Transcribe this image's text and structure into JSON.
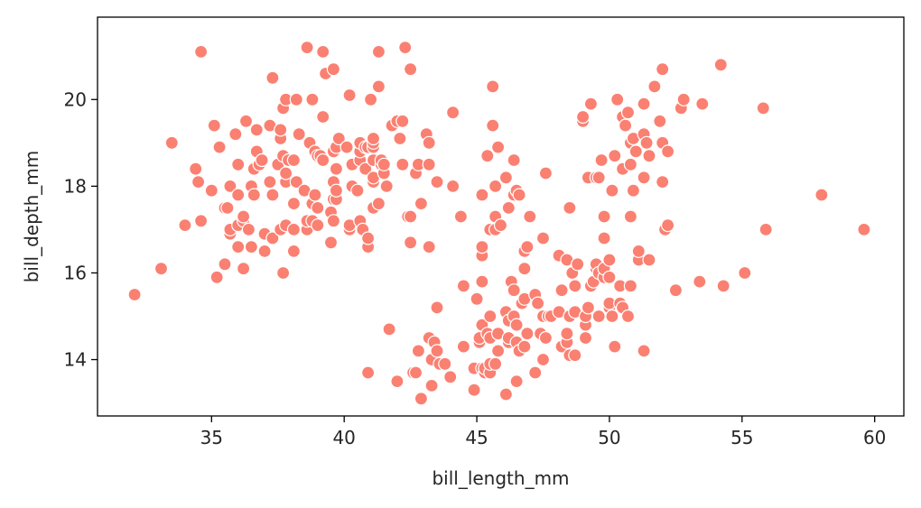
{
  "chart_data": {
    "type": "scatter",
    "xlabel": "bill_length_mm",
    "ylabel": "bill_depth_mm",
    "xlim": [
      30.7,
      61.1
    ],
    "ylim": [
      12.7,
      21.9
    ],
    "xticks": [
      35,
      40,
      45,
      50,
      55,
      60
    ],
    "yticks": [
      14,
      16,
      18,
      20
    ],
    "grid": false,
    "legend": "none",
    "marker_color": "#fa8072",
    "marker_edge": "#ffffff",
    "points": [
      [
        32.1,
        15.5
      ],
      [
        33.1,
        16.1
      ],
      [
        33.5,
        19.0
      ],
      [
        34.0,
        17.1
      ],
      [
        34.4,
        18.4
      ],
      [
        34.5,
        18.1
      ],
      [
        34.6,
        17.2
      ],
      [
        34.6,
        21.1
      ],
      [
        35.0,
        17.9
      ],
      [
        35.1,
        19.4
      ],
      [
        35.2,
        15.9
      ],
      [
        35.3,
        18.9
      ],
      [
        35.5,
        16.2
      ],
      [
        35.5,
        17.5
      ],
      [
        35.6,
        17.5
      ],
      [
        35.7,
        16.9
      ],
      [
        35.7,
        17.0
      ],
      [
        35.7,
        18.0
      ],
      [
        35.9,
        19.2
      ],
      [
        36.0,
        16.6
      ],
      [
        36.0,
        17.1
      ],
      [
        36.0,
        17.8
      ],
      [
        36.0,
        18.5
      ],
      [
        36.2,
        16.1
      ],
      [
        36.2,
        17.2
      ],
      [
        36.2,
        17.3
      ],
      [
        36.3,
        19.5
      ],
      [
        36.4,
        17.0
      ],
      [
        36.5,
        16.6
      ],
      [
        36.5,
        18.0
      ],
      [
        36.6,
        17.8
      ],
      [
        36.6,
        18.4
      ],
      [
        36.7,
        18.8
      ],
      [
        36.7,
        19.3
      ],
      [
        36.8,
        18.5
      ],
      [
        36.9,
        18.6
      ],
      [
        37.0,
        16.5
      ],
      [
        37.0,
        16.9
      ],
      [
        37.2,
        18.1
      ],
      [
        37.2,
        19.4
      ],
      [
        37.3,
        16.8
      ],
      [
        37.3,
        17.8
      ],
      [
        37.3,
        20.5
      ],
      [
        37.5,
        18.5
      ],
      [
        37.6,
        17.0
      ],
      [
        37.6,
        19.1
      ],
      [
        37.6,
        19.3
      ],
      [
        37.7,
        16.0
      ],
      [
        37.7,
        18.7
      ],
      [
        37.7,
        19.8
      ],
      [
        37.8,
        17.1
      ],
      [
        37.8,
        18.1
      ],
      [
        37.8,
        18.3
      ],
      [
        37.8,
        20.0
      ],
      [
        37.9,
        18.6
      ],
      [
        38.1,
        16.5
      ],
      [
        38.1,
        17.0
      ],
      [
        38.1,
        17.6
      ],
      [
        38.1,
        18.6
      ],
      [
        38.2,
        18.1
      ],
      [
        38.2,
        20.0
      ],
      [
        38.3,
        19.2
      ],
      [
        38.5,
        17.9
      ],
      [
        38.6,
        17.0
      ],
      [
        38.6,
        17.2
      ],
      [
        38.6,
        21.2
      ],
      [
        38.7,
        19.0
      ],
      [
        38.8,
        17.2
      ],
      [
        38.8,
        17.6
      ],
      [
        38.8,
        20.0
      ],
      [
        38.9,
        17.8
      ],
      [
        38.9,
        18.8
      ],
      [
        39.0,
        17.1
      ],
      [
        39.0,
        17.5
      ],
      [
        39.0,
        18.7
      ],
      [
        39.1,
        18.7
      ],
      [
        39.2,
        18.6
      ],
      [
        39.2,
        19.6
      ],
      [
        39.2,
        21.1
      ],
      [
        39.3,
        20.6
      ],
      [
        39.5,
        16.7
      ],
      [
        39.5,
        17.4
      ],
      [
        39.6,
        17.2
      ],
      [
        39.6,
        17.7
      ],
      [
        39.6,
        18.1
      ],
      [
        39.6,
        18.8
      ],
      [
        39.6,
        20.7
      ],
      [
        39.7,
        17.7
      ],
      [
        39.7,
        17.9
      ],
      [
        39.7,
        18.4
      ],
      [
        39.7,
        18.9
      ],
      [
        39.8,
        19.1
      ],
      [
        40.1,
        18.9
      ],
      [
        40.2,
        17.0
      ],
      [
        40.2,
        17.1
      ],
      [
        40.2,
        20.1
      ],
      [
        40.3,
        18.0
      ],
      [
        40.3,
        18.5
      ],
      [
        40.5,
        17.9
      ],
      [
        40.6,
        17.2
      ],
      [
        40.6,
        18.6
      ],
      [
        40.6,
        18.8
      ],
      [
        40.6,
        19.0
      ],
      [
        40.7,
        17.0
      ],
      [
        40.8,
        18.4
      ],
      [
        40.8,
        18.9
      ],
      [
        40.9,
        13.7
      ],
      [
        40.9,
        16.6
      ],
      [
        40.9,
        16.8
      ],
      [
        40.9,
        18.9
      ],
      [
        41.0,
        20.0
      ],
      [
        41.1,
        17.5
      ],
      [
        41.1,
        18.1
      ],
      [
        41.1,
        18.2
      ],
      [
        41.1,
        18.6
      ],
      [
        41.1,
        18.9
      ],
      [
        41.1,
        19.0
      ],
      [
        41.1,
        19.1
      ],
      [
        41.3,
        17.6
      ],
      [
        41.3,
        20.3
      ],
      [
        41.3,
        21.1
      ],
      [
        41.4,
        18.5
      ],
      [
        41.4,
        18.6
      ],
      [
        41.5,
        18.3
      ],
      [
        41.5,
        18.5
      ],
      [
        41.6,
        18.0
      ],
      [
        41.7,
        14.7
      ],
      [
        41.8,
        19.4
      ],
      [
        42.0,
        13.5
      ],
      [
        42.0,
        19.5
      ],
      [
        42.1,
        19.1
      ],
      [
        42.2,
        18.5
      ],
      [
        42.2,
        19.5
      ],
      [
        42.3,
        21.2
      ],
      [
        42.4,
        17.3
      ],
      [
        42.5,
        16.7
      ],
      [
        42.5,
        17.3
      ],
      [
        42.5,
        20.7
      ],
      [
        42.6,
        13.7
      ],
      [
        42.7,
        13.7
      ],
      [
        42.7,
        18.3
      ],
      [
        42.8,
        14.2
      ],
      [
        42.8,
        18.5
      ],
      [
        42.9,
        13.1
      ],
      [
        42.9,
        17.6
      ],
      [
        43.1,
        19.2
      ],
      [
        43.2,
        14.5
      ],
      [
        43.2,
        16.6
      ],
      [
        43.2,
        18.5
      ],
      [
        43.2,
        19.0
      ],
      [
        43.3,
        13.4
      ],
      [
        43.3,
        14.0
      ],
      [
        43.4,
        14.4
      ],
      [
        43.5,
        14.2
      ],
      [
        43.5,
        15.2
      ],
      [
        43.5,
        18.1
      ],
      [
        43.6,
        13.9
      ],
      [
        43.8,
        13.9
      ],
      [
        44.0,
        13.6
      ],
      [
        44.1,
        18.0
      ],
      [
        44.1,
        19.7
      ],
      [
        44.4,
        17.3
      ],
      [
        44.5,
        14.3
      ],
      [
        44.5,
        15.7
      ],
      [
        44.9,
        13.3
      ],
      [
        44.9,
        13.8
      ],
      [
        45.0,
        15.4
      ],
      [
        45.1,
        14.4
      ],
      [
        45.1,
        14.5
      ],
      [
        45.2,
        13.8
      ],
      [
        45.2,
        14.8
      ],
      [
        45.2,
        15.8
      ],
      [
        45.2,
        16.4
      ],
      [
        45.2,
        16.6
      ],
      [
        45.2,
        17.8
      ],
      [
        45.3,
        13.7
      ],
      [
        45.3,
        13.8
      ],
      [
        45.4,
        14.6
      ],
      [
        45.4,
        18.7
      ],
      [
        45.5,
        13.7
      ],
      [
        45.5,
        13.9
      ],
      [
        45.5,
        14.5
      ],
      [
        45.5,
        15.0
      ],
      [
        45.5,
        17.0
      ],
      [
        45.6,
        19.4
      ],
      [
        45.6,
        20.3
      ],
      [
        45.7,
        13.9
      ],
      [
        45.7,
        17.0
      ],
      [
        45.7,
        17.3
      ],
      [
        45.7,
        18.0
      ],
      [
        45.8,
        14.2
      ],
      [
        45.8,
        14.6
      ],
      [
        45.8,
        18.9
      ],
      [
        45.9,
        17.1
      ],
      [
        46.1,
        13.2
      ],
      [
        46.1,
        15.1
      ],
      [
        46.1,
        18.2
      ],
      [
        46.2,
        14.4
      ],
      [
        46.2,
        14.5
      ],
      [
        46.2,
        14.9
      ],
      [
        46.2,
        17.5
      ],
      [
        46.3,
        15.8
      ],
      [
        46.4,
        15.0
      ],
      [
        46.4,
        15.6
      ],
      [
        46.4,
        17.8
      ],
      [
        46.4,
        18.6
      ],
      [
        46.5,
        13.5
      ],
      [
        46.5,
        14.4
      ],
      [
        46.5,
        14.8
      ],
      [
        46.5,
        17.9
      ],
      [
        46.6,
        14.2
      ],
      [
        46.6,
        17.8
      ],
      [
        46.7,
        15.3
      ],
      [
        46.8,
        14.3
      ],
      [
        46.8,
        15.4
      ],
      [
        46.8,
        16.1
      ],
      [
        46.8,
        16.5
      ],
      [
        46.9,
        14.6
      ],
      [
        46.9,
        16.6
      ],
      [
        47.0,
        17.3
      ],
      [
        47.2,
        13.7
      ],
      [
        47.2,
        15.5
      ],
      [
        47.3,
        15.3
      ],
      [
        47.4,
        14.6
      ],
      [
        47.5,
        14.0
      ],
      [
        47.5,
        15.0
      ],
      [
        47.5,
        16.8
      ],
      [
        47.6,
        14.5
      ],
      [
        47.6,
        18.3
      ],
      [
        47.7,
        15.0
      ],
      [
        47.8,
        15.0
      ],
      [
        48.1,
        15.1
      ],
      [
        48.1,
        16.4
      ],
      [
        48.2,
        14.3
      ],
      [
        48.2,
        15.6
      ],
      [
        48.4,
        14.4
      ],
      [
        48.4,
        14.6
      ],
      [
        48.4,
        16.3
      ],
      [
        48.5,
        14.1
      ],
      [
        48.5,
        15.0
      ],
      [
        48.5,
        17.5
      ],
      [
        48.6,
        16.0
      ],
      [
        48.7,
        14.1
      ],
      [
        48.7,
        15.1
      ],
      [
        48.7,
        15.7
      ],
      [
        48.8,
        16.2
      ],
      [
        49.0,
        19.5
      ],
      [
        49.0,
        19.6
      ],
      [
        49.1,
        14.5
      ],
      [
        49.1,
        14.8
      ],
      [
        49.1,
        15.0
      ],
      [
        49.2,
        15.2
      ],
      [
        49.2,
        18.2
      ],
      [
        49.3,
        15.7
      ],
      [
        49.3,
        19.9
      ],
      [
        49.4,
        15.8
      ],
      [
        49.5,
        16.1
      ],
      [
        49.5,
        16.2
      ],
      [
        49.5,
        18.2
      ],
      [
        49.6,
        15.0
      ],
      [
        49.6,
        16.0
      ],
      [
        49.6,
        18.2
      ],
      [
        49.7,
        18.6
      ],
      [
        49.8,
        15.9
      ],
      [
        49.8,
        16.1
      ],
      [
        49.8,
        16.8
      ],
      [
        49.8,
        17.3
      ],
      [
        50.0,
        15.2
      ],
      [
        50.0,
        15.3
      ],
      [
        50.0,
        15.9
      ],
      [
        50.0,
        16.3
      ],
      [
        50.1,
        15.0
      ],
      [
        50.1,
        17.9
      ],
      [
        50.2,
        14.3
      ],
      [
        50.2,
        18.7
      ],
      [
        50.3,
        20.0
      ],
      [
        50.4,
        15.3
      ],
      [
        50.4,
        15.7
      ],
      [
        50.5,
        15.2
      ],
      [
        50.5,
        18.4
      ],
      [
        50.5,
        19.6
      ],
      [
        50.6,
        19.4
      ],
      [
        50.7,
        15.0
      ],
      [
        50.7,
        19.7
      ],
      [
        50.8,
        15.7
      ],
      [
        50.8,
        17.3
      ],
      [
        50.8,
        18.5
      ],
      [
        50.8,
        19.0
      ],
      [
        50.9,
        17.9
      ],
      [
        50.9,
        19.1
      ],
      [
        51.0,
        18.8
      ],
      [
        51.1,
        16.3
      ],
      [
        51.1,
        16.5
      ],
      [
        51.3,
        14.2
      ],
      [
        51.3,
        18.2
      ],
      [
        51.3,
        19.2
      ],
      [
        51.3,
        19.9
      ],
      [
        51.4,
        19.0
      ],
      [
        51.5,
        16.3
      ],
      [
        51.5,
        18.7
      ],
      [
        51.7,
        20.3
      ],
      [
        51.9,
        19.5
      ],
      [
        52.0,
        18.1
      ],
      [
        52.0,
        19.0
      ],
      [
        52.0,
        20.7
      ],
      [
        52.1,
        17.0
      ],
      [
        52.2,
        17.1
      ],
      [
        52.2,
        18.8
      ],
      [
        52.5,
        15.6
      ],
      [
        52.7,
        19.8
      ],
      [
        52.8,
        20.0
      ],
      [
        53.4,
        15.8
      ],
      [
        53.5,
        19.9
      ],
      [
        54.2,
        20.8
      ],
      [
        54.3,
        15.7
      ],
      [
        55.1,
        16.0
      ],
      [
        55.8,
        19.8
      ],
      [
        55.9,
        17.0
      ],
      [
        58.0,
        17.8
      ],
      [
        59.6,
        17.0
      ]
    ]
  }
}
